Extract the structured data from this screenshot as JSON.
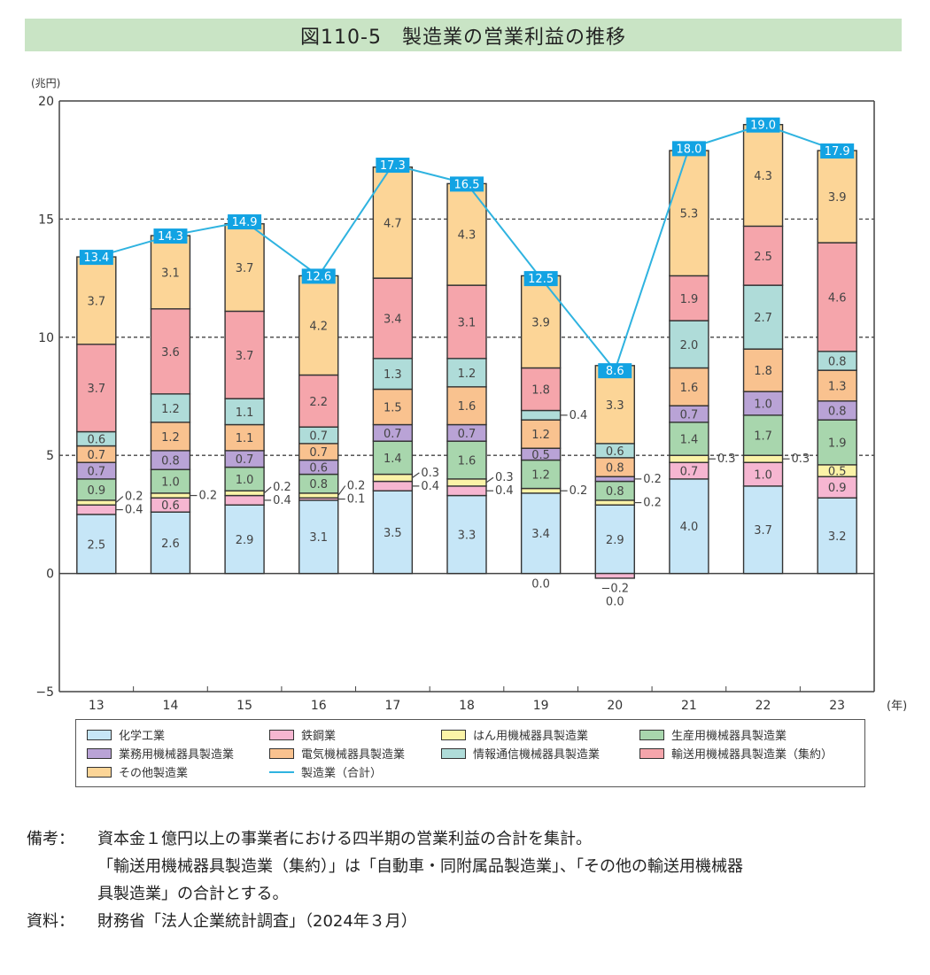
{
  "title": "図110-5　製造業の営業利益の推移",
  "chart_data": {
    "type": "bar",
    "stacked": true,
    "title": "図110-5　製造業の営業利益の推移",
    "ylabel": "(兆円)",
    "xlabel": "(年)",
    "ylim": [
      -5,
      20
    ],
    "yticks": [
      -5,
      0,
      5,
      10,
      15,
      20
    ],
    "ytick_labels": [
      "−5",
      "0",
      "5",
      "10",
      "15",
      "20"
    ],
    "grid": "dashed horizontal at 5, 10, 15",
    "legend_position": "bottom",
    "categories": [
      "13",
      "14",
      "15",
      "16",
      "17",
      "18",
      "19",
      "20",
      "21",
      "22",
      "23"
    ],
    "series": [
      {
        "name": "化学工業",
        "color": "#c6e6f7",
        "values": [
          2.5,
          2.6,
          2.9,
          3.1,
          3.5,
          3.3,
          3.4,
          2.9,
          4.0,
          3.7,
          3.2
        ]
      },
      {
        "name": "鉄鋼業",
        "color": "#f6b6d1",
        "values": [
          0.4,
          0.6,
          0.4,
          0.1,
          0.4,
          0.4,
          0.0,
          -0.2,
          0.7,
          1.0,
          0.9
        ]
      },
      {
        "name": "はん用機械器具製造業",
        "color": "#fbf3a7",
        "values": [
          0.2,
          0.2,
          0.2,
          0.2,
          0.3,
          0.3,
          0.2,
          0.2,
          0.3,
          0.3,
          0.5
        ]
      },
      {
        "name": "生産用機械器具製造業",
        "color": "#a8d6ad",
        "values": [
          0.9,
          1.0,
          1.0,
          0.8,
          1.4,
          1.6,
          1.2,
          0.8,
          1.4,
          1.7,
          1.9
        ]
      },
      {
        "name": "業務用機械器具製造業",
        "color": "#b9a3d6",
        "values": [
          0.7,
          0.8,
          0.7,
          0.6,
          0.7,
          0.7,
          0.5,
          0.2,
          0.7,
          1.0,
          0.8
        ]
      },
      {
        "name": "電気機械器具製造業",
        "color": "#f9c28f",
        "values": [
          0.7,
          1.2,
          1.1,
          0.7,
          1.5,
          1.6,
          1.2,
          0.8,
          1.6,
          1.8,
          1.3
        ]
      },
      {
        "name": "情報通信機械器具製造業",
        "color": "#afdcd9",
        "values": [
          0.6,
          1.2,
          1.1,
          0.7,
          1.3,
          1.2,
          0.4,
          0.6,
          2.0,
          2.7,
          0.8
        ]
      },
      {
        "name": "輸送用機械器具製造業（集約）",
        "color": "#f5a5ab",
        "values": [
          3.7,
          3.6,
          3.7,
          2.2,
          3.4,
          3.1,
          1.8,
          0.0,
          1.9,
          2.5,
          4.6
        ]
      },
      {
        "name": "その他製造業",
        "color": "#fcd597",
        "values": [
          3.7,
          3.1,
          3.7,
          4.2,
          4.7,
          4.3,
          3.9,
          3.3,
          5.3,
          4.3,
          3.9
        ]
      }
    ],
    "line_series": {
      "name": "製造業（合計）",
      "color": "#2fb3e0",
      "values": [
        13.4,
        14.3,
        14.9,
        12.6,
        17.3,
        16.5,
        12.5,
        8.6,
        18.0,
        19.0,
        17.9
      ]
    }
  },
  "legend": {
    "items": [
      "化学工業",
      "鉄鋼業",
      "はん用機械器具製造業",
      "生産用機械器具製造業",
      "業務用機械器具製造業",
      "電気機械器具製造業",
      "情報通信機械器具製造業",
      "輸送用機械器具製造業（集約）",
      "その他製造業"
    ],
    "line_item": "製造業（合計）"
  },
  "notes": {
    "remarks_label": "備考：",
    "remarks_line1": "資本金１億円以上の事業者における四半期の営業利益の合計を集計。",
    "remarks_line2": "「輸送用機械器具製造業（集約）」は「自動車・同附属品製造業」、「その他の輸送用機械器",
    "remarks_line3": "具製造業」の合計とする。",
    "source_label": "資料：",
    "source_text": "財務省「法人企業統計調査」（2024年３月）"
  }
}
